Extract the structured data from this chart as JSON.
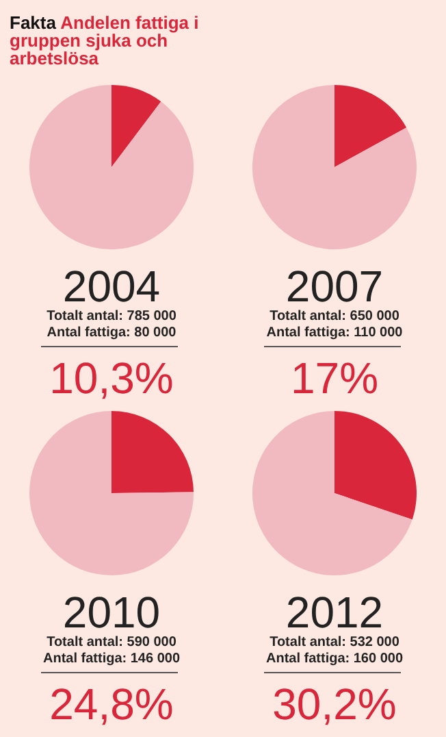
{
  "chart_data": [
    {
      "type": "pie",
      "title": "2004",
      "subtitle": "Fakta",
      "annotations": [
        "Andelen fattiga i gruppen sjuka och arbetslösa",
        "Totalt antal: 785 000",
        "Antal fattiga: 80 000",
        "10,3%"
      ],
      "categories": [
        null,
        null
      ],
      "values": [
        10.3,
        89.7
      ],
      "colors": [
        "#d9263a",
        "#f1b9c0"
      ]
    },
    {
      "type": "pie",
      "title": "2007",
      "annotations": [
        "Totalt antal: 650 000",
        "Antal fattiga: 110 000",
        "17%"
      ],
      "categories": [
        null,
        null
      ],
      "values": [
        17,
        83
      ],
      "colors": [
        "#d9263a",
        "#f1b9c0"
      ]
    },
    {
      "type": "pie",
      "title": "2010",
      "annotations": [
        "Totalt antal: 590 000",
        "Antal fattiga: 146 000",
        "24,8%"
      ],
      "categories": [
        null,
        null
      ],
      "values": [
        24.8,
        75.2
      ],
      "colors": [
        "#d9263a",
        "#f1b9c0"
      ]
    },
    {
      "type": "pie",
      "title": "2012",
      "annotations": [
        "Totalt antal: 532 000",
        "Antal fattiga: 160 000",
        "30,2%"
      ],
      "categories": [
        null,
        null
      ],
      "values": [
        30.2,
        69.8
      ],
      "colors": [
        "#d9263a",
        "#f1b9c0"
      ]
    }
  ]
}
